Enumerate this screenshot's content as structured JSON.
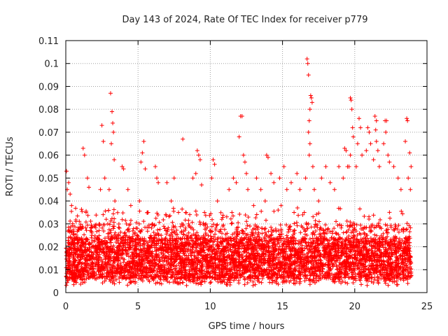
{
  "chart_data": {
    "type": "scatter",
    "title": "Day 143 of 2024, Rate Of TEC Index for receiver p779",
    "xlabel": "GPS time / hours",
    "ylabel": "ROTI / TECUs",
    "xlim": [
      0,
      25
    ],
    "ylim": [
      0,
      0.11
    ],
    "grid": true,
    "xticks": [
      0,
      5,
      10,
      15,
      20,
      25
    ],
    "xtick_labels": [
      "0",
      "5",
      "10",
      "15",
      "20",
      "25"
    ],
    "yticks": [
      0,
      0.01,
      0.02,
      0.03,
      0.04,
      0.05,
      0.06,
      0.07,
      0.08,
      0.09,
      0.1,
      0.11
    ],
    "ytick_labels": [
      "0",
      "0.01",
      "0.02",
      "0.03",
      "0.04",
      "0.05",
      "0.06",
      "0.07",
      "0.08",
      "0.09",
      "0.1",
      "0.11"
    ],
    "marker": "+",
    "color": "#ff0000",
    "series": [
      {
        "name": "ROTI",
        "points": [
          [
            0.05,
            0.053
          ],
          [
            0.1,
            0.045
          ],
          [
            0.2,
            0.048
          ],
          [
            0.3,
            0.043
          ],
          [
            0.4,
            0.038
          ],
          [
            0.15,
            0.012
          ],
          [
            0.25,
            0.008
          ],
          [
            0.5,
            0.022
          ],
          [
            1.2,
            0.063
          ],
          [
            1.3,
            0.06
          ],
          [
            1.5,
            0.05
          ],
          [
            1.6,
            0.046
          ],
          [
            1.4,
            0.035
          ],
          [
            1.1,
            0.028
          ],
          [
            1.8,
            0.025
          ],
          [
            2.0,
            0.02
          ],
          [
            2.5,
            0.073
          ],
          [
            2.6,
            0.066
          ],
          [
            2.7,
            0.05
          ],
          [
            2.4,
            0.045
          ],
          [
            2.8,
            0.032
          ],
          [
            2.3,
            0.015
          ],
          [
            3.1,
            0.087
          ],
          [
            3.2,
            0.079
          ],
          [
            3.25,
            0.074
          ],
          [
            3.3,
            0.07
          ],
          [
            3.15,
            0.065
          ],
          [
            3.35,
            0.058
          ],
          [
            3.0,
            0.045
          ],
          [
            3.4,
            0.04
          ],
          [
            3.9,
            0.055
          ],
          [
            4.0,
            0.054
          ],
          [
            4.3,
            0.045
          ],
          [
            4.5,
            0.038
          ],
          [
            4.2,
            0.03
          ],
          [
            3.7,
            0.02
          ],
          [
            5.4,
            0.066
          ],
          [
            5.3,
            0.061
          ],
          [
            5.2,
            0.057
          ],
          [
            5.5,
            0.054
          ],
          [
            5.1,
            0.04
          ],
          [
            5.7,
            0.035
          ],
          [
            6.2,
            0.055
          ],
          [
            6.3,
            0.05
          ],
          [
            6.4,
            0.048
          ],
          [
            6.0,
            0.03
          ],
          [
            6.6,
            0.025
          ],
          [
            7.0,
            0.048
          ],
          [
            7.5,
            0.05
          ],
          [
            7.3,
            0.04
          ],
          [
            7.8,
            0.035
          ],
          [
            8.1,
            0.067
          ],
          [
            8.3,
            0.035
          ],
          [
            8.5,
            0.03
          ],
          [
            8.8,
            0.05
          ],
          [
            9.1,
            0.062
          ],
          [
            9.2,
            0.06
          ],
          [
            9.3,
            0.058
          ],
          [
            9.0,
            0.052
          ],
          [
            9.4,
            0.047
          ],
          [
            9.6,
            0.035
          ],
          [
            10.2,
            0.058
          ],
          [
            10.3,
            0.056
          ],
          [
            10.1,
            0.05
          ],
          [
            10.5,
            0.04
          ],
          [
            10.8,
            0.032
          ],
          [
            11.3,
            0.045
          ],
          [
            11.6,
            0.05
          ],
          [
            11.8,
            0.048
          ],
          [
            11.5,
            0.035
          ],
          [
            12.1,
            0.077
          ],
          [
            12.2,
            0.077
          ],
          [
            12.0,
            0.068
          ],
          [
            12.3,
            0.06
          ],
          [
            12.4,
            0.057
          ],
          [
            12.5,
            0.052
          ],
          [
            12.6,
            0.045
          ],
          [
            13.2,
            0.05
          ],
          [
            13.5,
            0.045
          ],
          [
            13.0,
            0.038
          ],
          [
            13.9,
            0.06
          ],
          [
            14.0,
            0.059
          ],
          [
            14.2,
            0.052
          ],
          [
            14.4,
            0.048
          ],
          [
            13.8,
            0.04
          ],
          [
            14.8,
            0.05
          ],
          [
            15.1,
            0.055
          ],
          [
            15.3,
            0.045
          ],
          [
            14.9,
            0.038
          ],
          [
            15.6,
            0.048
          ],
          [
            16.0,
            0.052
          ],
          [
            16.2,
            0.045
          ],
          [
            15.8,
            0.035
          ],
          [
            16.7,
            0.102
          ],
          [
            16.75,
            0.1
          ],
          [
            16.8,
            0.095
          ],
          [
            16.95,
            0.086
          ],
          [
            17.0,
            0.085
          ],
          [
            17.05,
            0.083
          ],
          [
            16.9,
            0.08
          ],
          [
            16.85,
            0.075
          ],
          [
            16.8,
            0.07
          ],
          [
            16.9,
            0.065
          ],
          [
            16.85,
            0.06
          ],
          [
            17.1,
            0.055
          ],
          [
            16.6,
            0.05
          ],
          [
            17.2,
            0.045
          ],
          [
            17.7,
            0.05
          ],
          [
            18.0,
            0.055
          ],
          [
            18.3,
            0.048
          ],
          [
            18.6,
            0.045
          ],
          [
            18.9,
            0.055
          ],
          [
            17.5,
            0.04
          ],
          [
            19.3,
            0.063
          ],
          [
            19.4,
            0.062
          ],
          [
            19.5,
            0.055
          ],
          [
            19.2,
            0.05
          ],
          [
            19.7,
            0.085
          ],
          [
            19.75,
            0.084
          ],
          [
            19.8,
            0.08
          ],
          [
            19.85,
            0.072
          ],
          [
            19.9,
            0.068
          ],
          [
            19.7,
            0.06
          ],
          [
            19.6,
            0.055
          ],
          [
            20.3,
            0.076
          ],
          [
            20.4,
            0.072
          ],
          [
            20.2,
            0.065
          ],
          [
            20.5,
            0.06
          ],
          [
            20.1,
            0.055
          ],
          [
            20.9,
            0.072
          ],
          [
            21.0,
            0.07
          ],
          [
            21.1,
            0.065
          ],
          [
            20.8,
            0.062
          ],
          [
            21.4,
            0.077
          ],
          [
            21.5,
            0.075
          ],
          [
            21.45,
            0.071
          ],
          [
            21.5,
            0.066
          ],
          [
            21.6,
            0.062
          ],
          [
            21.3,
            0.058
          ],
          [
            21.7,
            0.055
          ],
          [
            22.1,
            0.075
          ],
          [
            22.2,
            0.075
          ],
          [
            22.15,
            0.07
          ],
          [
            22.0,
            0.065
          ],
          [
            22.3,
            0.06
          ],
          [
            22.4,
            0.057
          ],
          [
            22.7,
            0.055
          ],
          [
            23.0,
            0.05
          ],
          [
            23.2,
            0.045
          ],
          [
            23.6,
            0.076
          ],
          [
            23.65,
            0.075
          ],
          [
            23.5,
            0.066
          ],
          [
            23.8,
            0.061
          ],
          [
            23.9,
            0.055
          ],
          [
            23.7,
            0.05
          ],
          [
            23.85,
            0.045
          ]
        ]
      }
    ]
  }
}
